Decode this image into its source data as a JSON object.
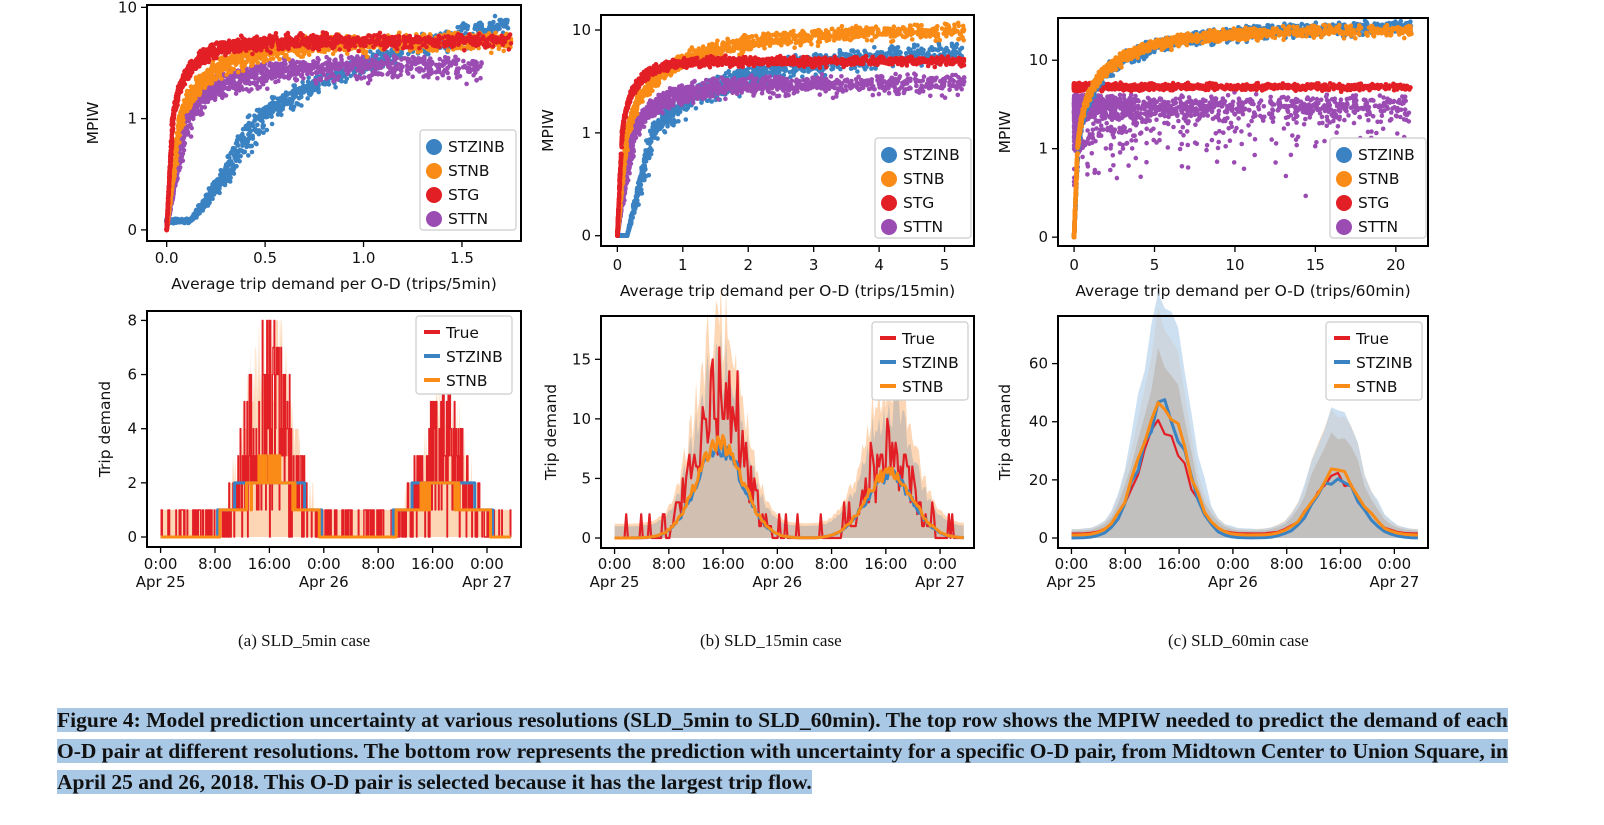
{
  "colors": {
    "STZINB": "#3a82c2",
    "STNB": "#f98b16",
    "STG": "#e31f26",
    "STTN": "#9b4cb3",
    "True": "#e31f26",
    "band_orange": "#fdd0a8",
    "band_blue": "#bcd6ec",
    "band_grey": "#bdb6b1"
  },
  "subcaptions": [
    "(a)  SLD_5min case",
    "(b)  SLD_15min case",
    "(c)  SLD_60min case"
  ],
  "caption": "Figure 4: Model prediction uncertainty at various resolutions (SLD_5min to SLD_60min). The top row shows the MPIW needed to predict the demand of each O-D pair at different resolutions. The bottom row represents the prediction with uncertainty for a specific O-D pair, from Midtown Center to Union Square, in April 25 and 26, 2018. This O-D pair is selected because it has the largest trip flow.",
  "chart_data": [
    {
      "type": "scatter",
      "panel": "a-top",
      "xlabel": "Average trip demand per O-D (trips/5min)",
      "ylabel": "MPIW",
      "y_scale": "symlog",
      "x_range": [
        0,
        1.8
      ],
      "x_ticks": [
        "0.0",
        "0.5",
        "1.0",
        "1.5"
      ],
      "y_ticks": [
        "0",
        "1",
        "10"
      ],
      "legend": [
        "STZINB",
        "STNB",
        "STG",
        "STTN"
      ],
      "legend_position": "lower-right",
      "series": [
        {
          "name": "STG",
          "plateau": 5,
          "x_max": 1.75
        },
        {
          "name": "STNB",
          "plateau": 5,
          "x_max": 1.75
        },
        {
          "name": "STTN",
          "plateau": 3,
          "x_max": 1.6
        },
        {
          "name": "STZINB",
          "plateau": 3.5,
          "x_max": 1.75
        }
      ]
    },
    {
      "type": "scatter",
      "panel": "b-top",
      "xlabel": "Average trip demand per O-D (trips/15min)",
      "ylabel": "MPIW",
      "y_scale": "symlog",
      "x_range": [
        0,
        5.3
      ],
      "x_ticks": [
        "0",
        "1",
        "2",
        "3",
        "4",
        "5"
      ],
      "y_ticks": [
        "0",
        "1",
        "10"
      ],
      "legend": [
        "STZINB",
        "STNB",
        "STG",
        "STTN"
      ],
      "legend_position": "lower-right",
      "series": [
        {
          "name": "STNB",
          "plateau": 10,
          "x_max": 5.3
        },
        {
          "name": "STG",
          "plateau": 5,
          "x_max": 5.3
        },
        {
          "name": "STTN",
          "plateau": 3,
          "x_max": 5.3
        },
        {
          "name": "STZINB",
          "plateau": 8,
          "x_max": 5.3
        }
      ]
    },
    {
      "type": "scatter",
      "panel": "c-top",
      "xlabel": "Average trip demand per O-D (trips/60min)",
      "ylabel": "MPIW",
      "y_scale": "symlog",
      "x_range": [
        0,
        21.3
      ],
      "x_ticks": [
        "0",
        "5",
        "10",
        "15",
        "20"
      ],
      "y_ticks": [
        "0",
        "1",
        "10"
      ],
      "legend": [
        "STZINB",
        "STNB",
        "STG",
        "STTN"
      ],
      "legend_position": "lower-right",
      "series": [
        {
          "name": "STZINB",
          "plateau": 22,
          "x_max": 21
        },
        {
          "name": "STNB",
          "plateau": 20,
          "x_max": 21
        },
        {
          "name": "STG",
          "plateau": 5,
          "x_max": 21
        },
        {
          "name": "STTN",
          "plateau": 3,
          "x_max": 21
        }
      ]
    },
    {
      "type": "line",
      "panel": "a-bottom",
      "ylabel": "Trip demand",
      "y_range": [
        0,
        8
      ],
      "y_ticks": [
        "0",
        "2",
        "4",
        "6",
        "8"
      ],
      "x_ticks": [
        "0:00\nApr 25",
        "8:00",
        "16:00",
        "0:00\nApr 26",
        "8:00",
        "16:00",
        "0:00\nApr 27"
      ],
      "legend": [
        "True",
        "STZINB",
        "STNB"
      ],
      "legend_position": "upper-right",
      "peaks": [
        {
          "hour": 16,
          "true": 7,
          "stnb": 2.5,
          "upper": 8
        },
        {
          "hour": 41.5,
          "true": 5,
          "stnb": 2,
          "upper": 5
        }
      ]
    },
    {
      "type": "line",
      "panel": "b-bottom",
      "ylabel": "Trip demand",
      "y_range": [
        0,
        18
      ],
      "y_ticks": [
        "0",
        "5",
        "10",
        "15"
      ],
      "x_ticks": [
        "0:00\nApr 25",
        "8:00",
        "16:00",
        "0:00\nApr 26",
        "8:00",
        "16:00",
        "0:00\nApr 27"
      ],
      "legend": [
        "True",
        "STZINB",
        "STNB"
      ],
      "legend_position": "upper-right",
      "peaks": [
        {
          "hour": 15.5,
          "true": 14,
          "stnb": 8,
          "upper": 18
        },
        {
          "hour": 40.5,
          "true": 8,
          "stnb": 5.5,
          "upper": 13
        }
      ]
    },
    {
      "type": "line",
      "panel": "c-bottom",
      "ylabel": "Trip demand",
      "y_range": [
        0,
        75
      ],
      "y_ticks": [
        "0",
        "20",
        "40",
        "60"
      ],
      "x_ticks": [
        "0:00\nApr 25",
        "8:00",
        "16:00",
        "0:00\nApr 26",
        "8:00",
        "16:00",
        "0:00\nApr 27"
      ],
      "legend": [
        "True",
        "STZINB",
        "STNB"
      ],
      "legend_position": "upper-right",
      "peaks": [
        {
          "hour": 13.5,
          "true": 38,
          "stnb": 47,
          "upper": 75
        },
        {
          "hour": 39.5,
          "true": 20,
          "stnb": 22,
          "upper": 45
        }
      ]
    }
  ]
}
